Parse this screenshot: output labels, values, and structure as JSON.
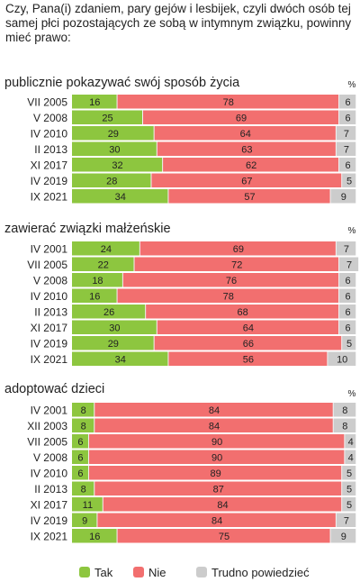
{
  "question": "Czy, Pana(i) zdaniem, pary gejów i lesbijek, czyli dwóch osób tej samej płci pozostających ze sobą w intymnym związku, powinny mieć prawo:",
  "percent_symbol": "%",
  "colors": {
    "tak": "#8dc63f",
    "nie": "#f26f6f",
    "trudno": "#cccccc",
    "track": "#f2f2f2"
  },
  "legend": [
    {
      "key": "tak",
      "label": "Tak"
    },
    {
      "key": "nie",
      "label": "Nie"
    },
    {
      "key": "trudno",
      "label": "Trudno powiedzieć"
    }
  ],
  "chart_data": [
    {
      "type": "bar",
      "stacked": true,
      "orientation": "horizontal",
      "title": "publicznie pokazywać swój sposób życia",
      "categories": [
        "VII 2005",
        "V 2008",
        "IV 2010",
        "II 2013",
        "XI 2017",
        "IV 2019",
        "IX 2021"
      ],
      "series": [
        {
          "name": "Tak",
          "values": [
            16,
            25,
            29,
            30,
            32,
            28,
            34
          ]
        },
        {
          "name": "Nie",
          "values": [
            78,
            69,
            64,
            63,
            62,
            67,
            57
          ]
        },
        {
          "name": "Trudno powiedzieć",
          "values": [
            6,
            6,
            7,
            7,
            6,
            5,
            9
          ]
        }
      ]
    },
    {
      "type": "bar",
      "stacked": true,
      "orientation": "horizontal",
      "title": "zawierać związki małżeńskie",
      "categories": [
        "IV 2001",
        "VII 2005",
        "V 2008",
        "IV 2010",
        "II 2013",
        "XI 2017",
        "IV 2019",
        "IX 2021"
      ],
      "series": [
        {
          "name": "Tak",
          "values": [
            24,
            22,
            18,
            16,
            26,
            30,
            29,
            34
          ]
        },
        {
          "name": "Nie",
          "values": [
            69,
            72,
            76,
            78,
            68,
            64,
            66,
            56
          ]
        },
        {
          "name": "Trudno powiedzieć",
          "values": [
            7,
            7,
            6,
            6,
            6,
            6,
            5,
            10
          ]
        }
      ]
    },
    {
      "type": "bar",
      "stacked": true,
      "orientation": "horizontal",
      "title": "adoptować dzieci",
      "categories": [
        "IV 2001",
        "XII 2003",
        "VII 2005",
        "V 2008",
        "IV 2010",
        "II 2013",
        "XI 2017",
        "IV 2019",
        "IX 2021"
      ],
      "series": [
        {
          "name": "Tak",
          "values": [
            8,
            8,
            6,
            6,
            6,
            8,
            11,
            9,
            16
          ]
        },
        {
          "name": "Nie",
          "values": [
            84,
            84,
            90,
            90,
            89,
            87,
            84,
            84,
            75
          ]
        },
        {
          "name": "Trudno powiedzieć",
          "values": [
            8,
            8,
            4,
            4,
            5,
            5,
            5,
            7,
            9
          ]
        }
      ]
    }
  ]
}
